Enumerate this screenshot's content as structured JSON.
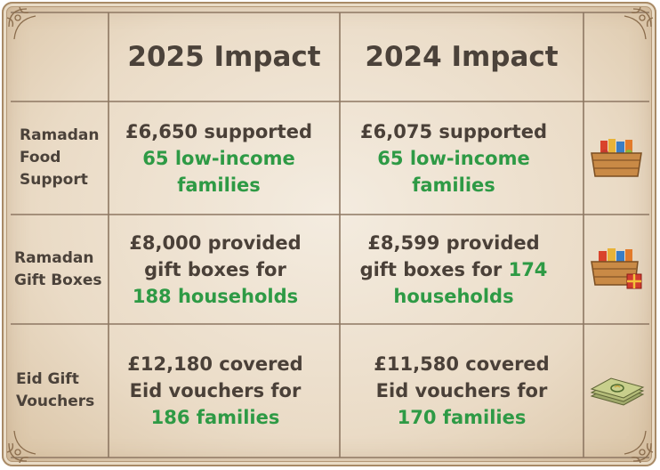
{
  "header": {
    "col_2025": "2025 Impact",
    "col_2024": "2024 Impact"
  },
  "rows": [
    {
      "label": "Ramadan Food Support",
      "label_lines": [
        "Ramadan",
        "Food",
        "Support"
      ],
      "y2025": {
        "main": "£6,650 supported",
        "highlight": "65 low-income families"
      },
      "y2024": {
        "main": "£6,075 supported",
        "highlight": "65 low-income families"
      },
      "icon": "food-crate-icon"
    },
    {
      "label": "Ramadan Gift Boxes",
      "label_lines": [
        "Ramadan",
        "Gift Boxes"
      ],
      "y2025": {
        "line1": "£8,000 provided",
        "line2": "gift boxes for",
        "highlight": "188 households"
      },
      "y2024": {
        "line1": "£8,599 provided",
        "line2": "gift boxes for",
        "highlight_num": "174",
        "highlight": "households"
      },
      "icon": "gift-crate-icon"
    },
    {
      "label": "Eid Gift Vouchers",
      "label_lines": [
        "Eid Gift",
        "Vouchers"
      ],
      "y2025": {
        "line1": "£12,180 covered",
        "line2": "Eid vouchers for",
        "highlight": "186 families"
      },
      "y2024": {
        "line1": "£11,580 covered",
        "line2": "Eid vouchers for",
        "highlight": "170 families"
      },
      "icon": "voucher-stack-icon"
    }
  ],
  "colors": {
    "highlight": "#2e9a45",
    "text": "#4a4038",
    "grid_line": "#8d7762",
    "parchment": "#efe4d4"
  }
}
